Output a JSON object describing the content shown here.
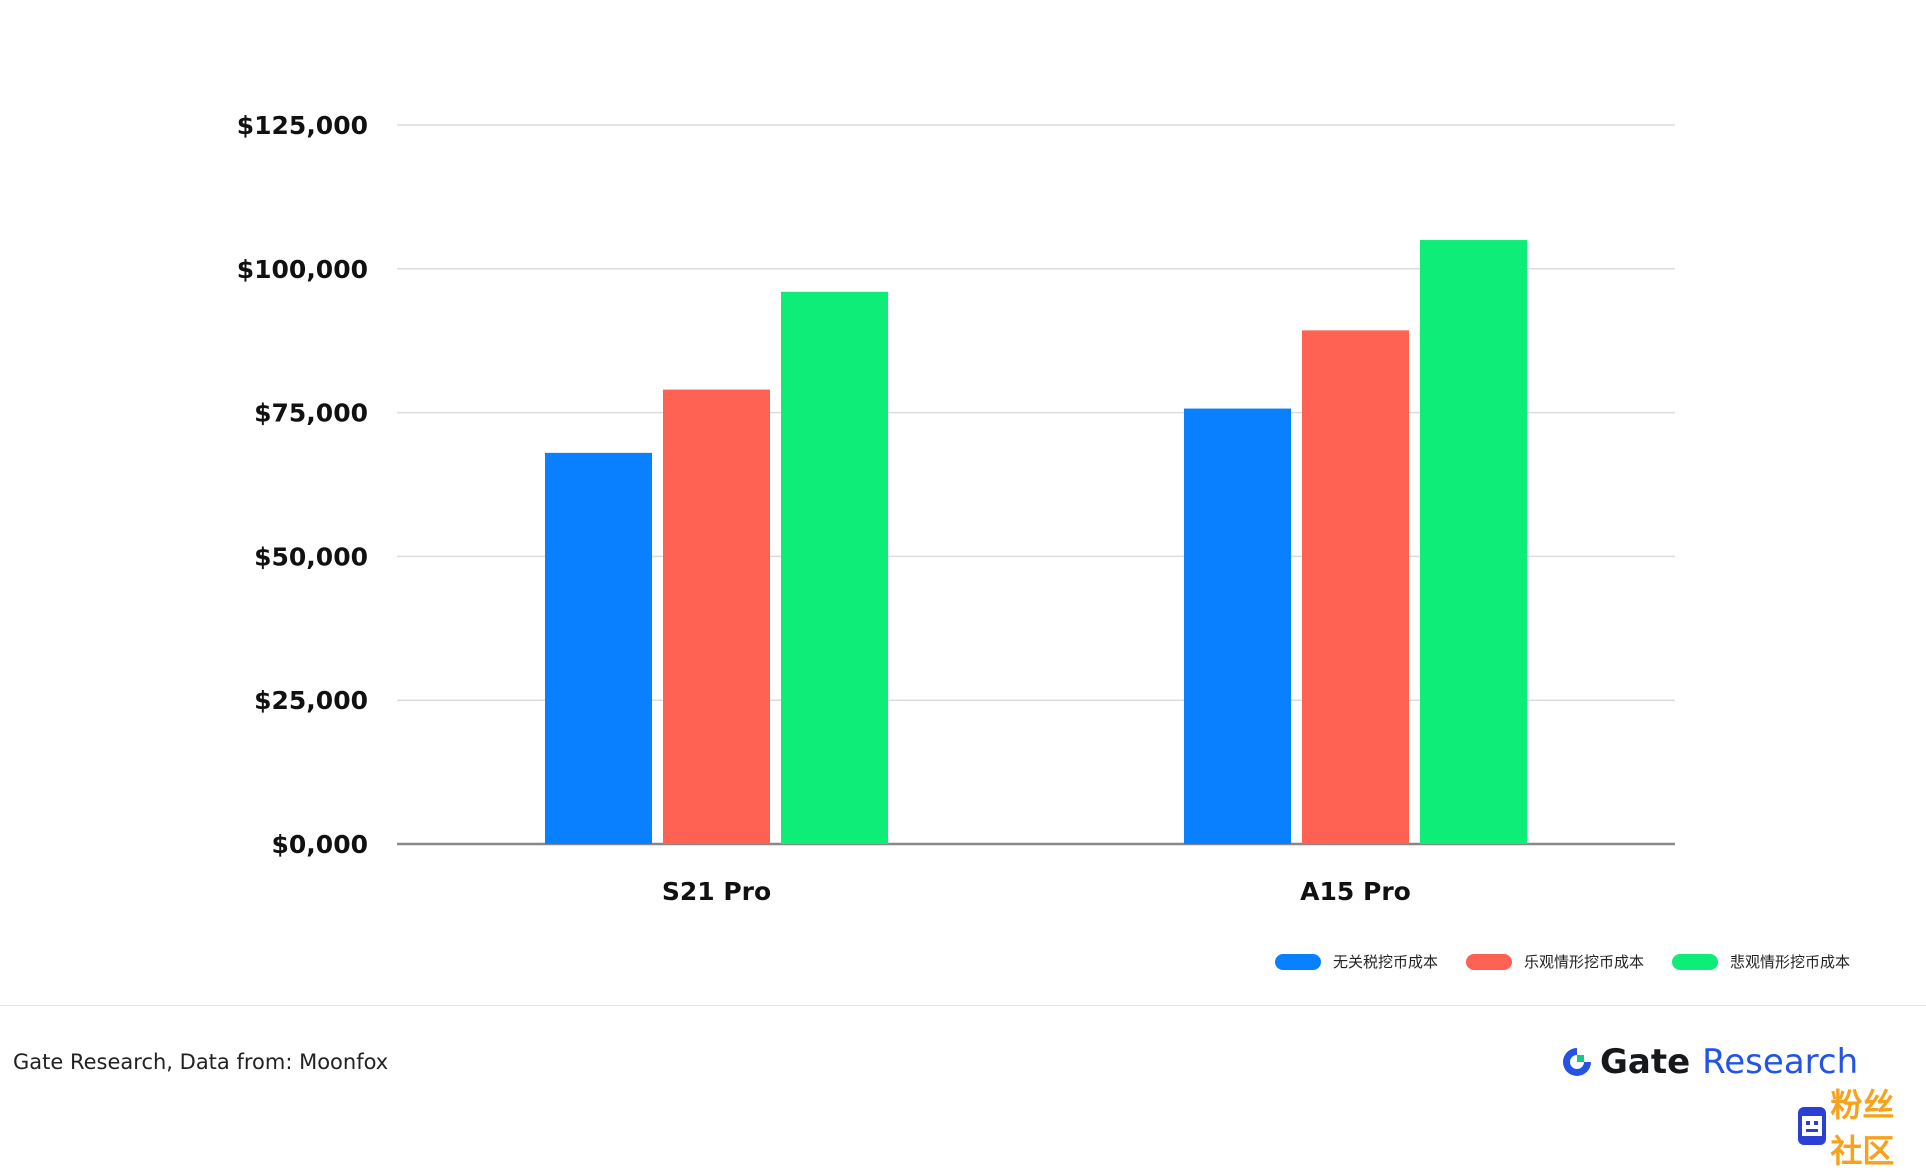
{
  "chart_data": {
    "type": "bar",
    "categories": [
      "S21 Pro",
      "A15 Pro"
    ],
    "series": [
      {
        "name": "无关税挖币成本",
        "color": "#0880ff",
        "values": [
          68000,
          75700
        ]
      },
      {
        "name": "乐观情形挖币成本",
        "color": "#ff6152",
        "values": [
          79000,
          89300
        ]
      },
      {
        "name": "悲观情形挖币成本",
        "color": "#0ded77",
        "values": [
          96000,
          105000
        ]
      }
    ],
    "yticks": [
      "$0,000",
      "$25,000",
      "$50,000",
      "$75,000",
      "$100,000",
      "$125,000"
    ],
    "ytick_values": [
      0,
      25000,
      50000,
      75000,
      100000,
      125000
    ],
    "ylim": [
      0,
      125000
    ],
    "grid": true,
    "legend_position": "bottom-right",
    "title": "",
    "xlabel": "",
    "ylabel": ""
  },
  "footer": {
    "source": "Gate Research, Data from: Moonfox",
    "brand_a": "Gate",
    "brand_b": "Research",
    "brand_icon": "gate-g-icon",
    "brand_color": "#2354e6"
  },
  "watermark": {
    "text": "粉丝社区",
    "icon": "pixel-face-icon"
  }
}
